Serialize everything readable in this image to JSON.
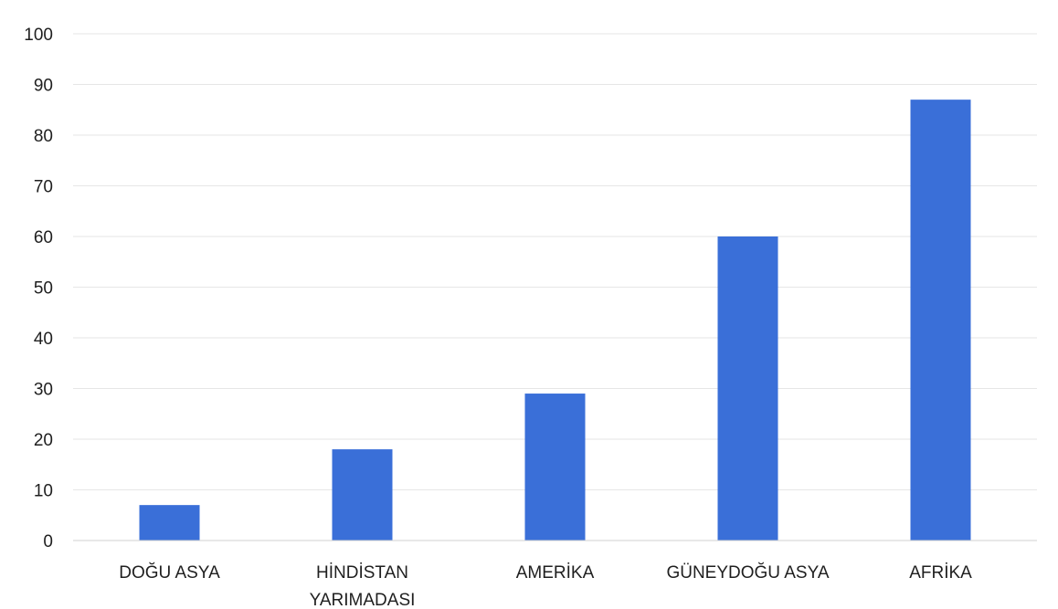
{
  "chart_data": {
    "type": "bar",
    "categories": [
      [
        "DOĞU ASYA"
      ],
      [
        "HİNDİSTAN",
        "YARIMADASI"
      ],
      [
        "AMERİKA"
      ],
      [
        "GÜNEYDOĞU ASYA"
      ],
      [
        "AFRİKA"
      ]
    ],
    "values": [
      7,
      18,
      29,
      60,
      87
    ],
    "title": "",
    "xlabel": "",
    "ylabel": "",
    "ylim": [
      0,
      100
    ],
    "yticks": [
      0,
      10,
      20,
      30,
      40,
      50,
      60,
      70,
      80,
      90,
      100
    ],
    "grid": true,
    "legend": "none",
    "bar_color": "#3a6fd8"
  }
}
